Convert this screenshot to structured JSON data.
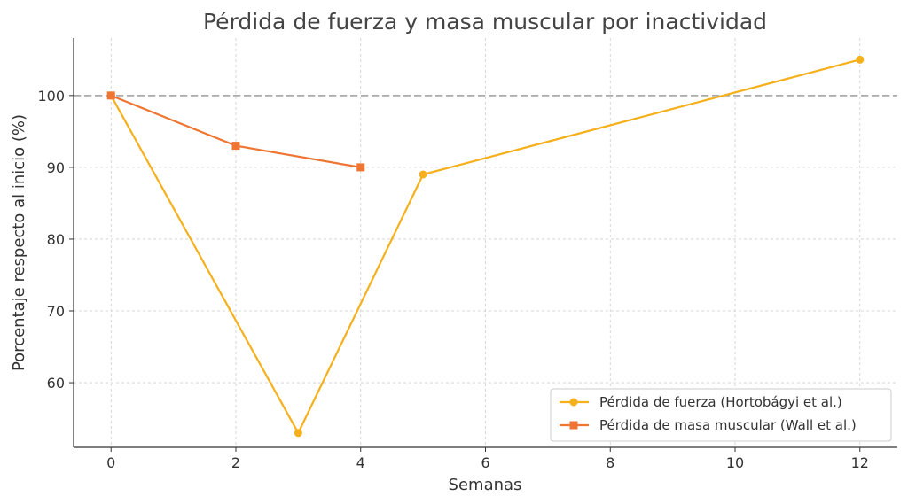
{
  "chart_data": {
    "type": "line",
    "title": "Pérdida de fuerza y masa muscular por inactividad",
    "xlabel": "Semanas",
    "ylabel": "Porcentaje respecto al inicio (%)",
    "xlim": [
      -0.6,
      12.6
    ],
    "ylim": [
      51,
      108
    ],
    "xticks": [
      0,
      2,
      4,
      6,
      8,
      10,
      12
    ],
    "yticks": [
      60,
      70,
      80,
      90,
      100
    ],
    "grid": true,
    "legend_position": "bottom-right",
    "reference_line": {
      "y": 100,
      "style": "dashed",
      "color": "#aaaaaa"
    },
    "series": [
      {
        "name": "Pérdida de fuerza (Hortobágyi et al.)",
        "color": "#F5B01B",
        "marker": "circle",
        "x": [
          0,
          3,
          5,
          12
        ],
        "y": [
          100,
          53,
          89,
          105
        ]
      },
      {
        "name": "Pérdida de masa muscular (Wall et al.)",
        "color": "#EE7632",
        "marker": "square",
        "x": [
          0,
          2,
          4
        ],
        "y": [
          100,
          93,
          90
        ]
      }
    ]
  }
}
